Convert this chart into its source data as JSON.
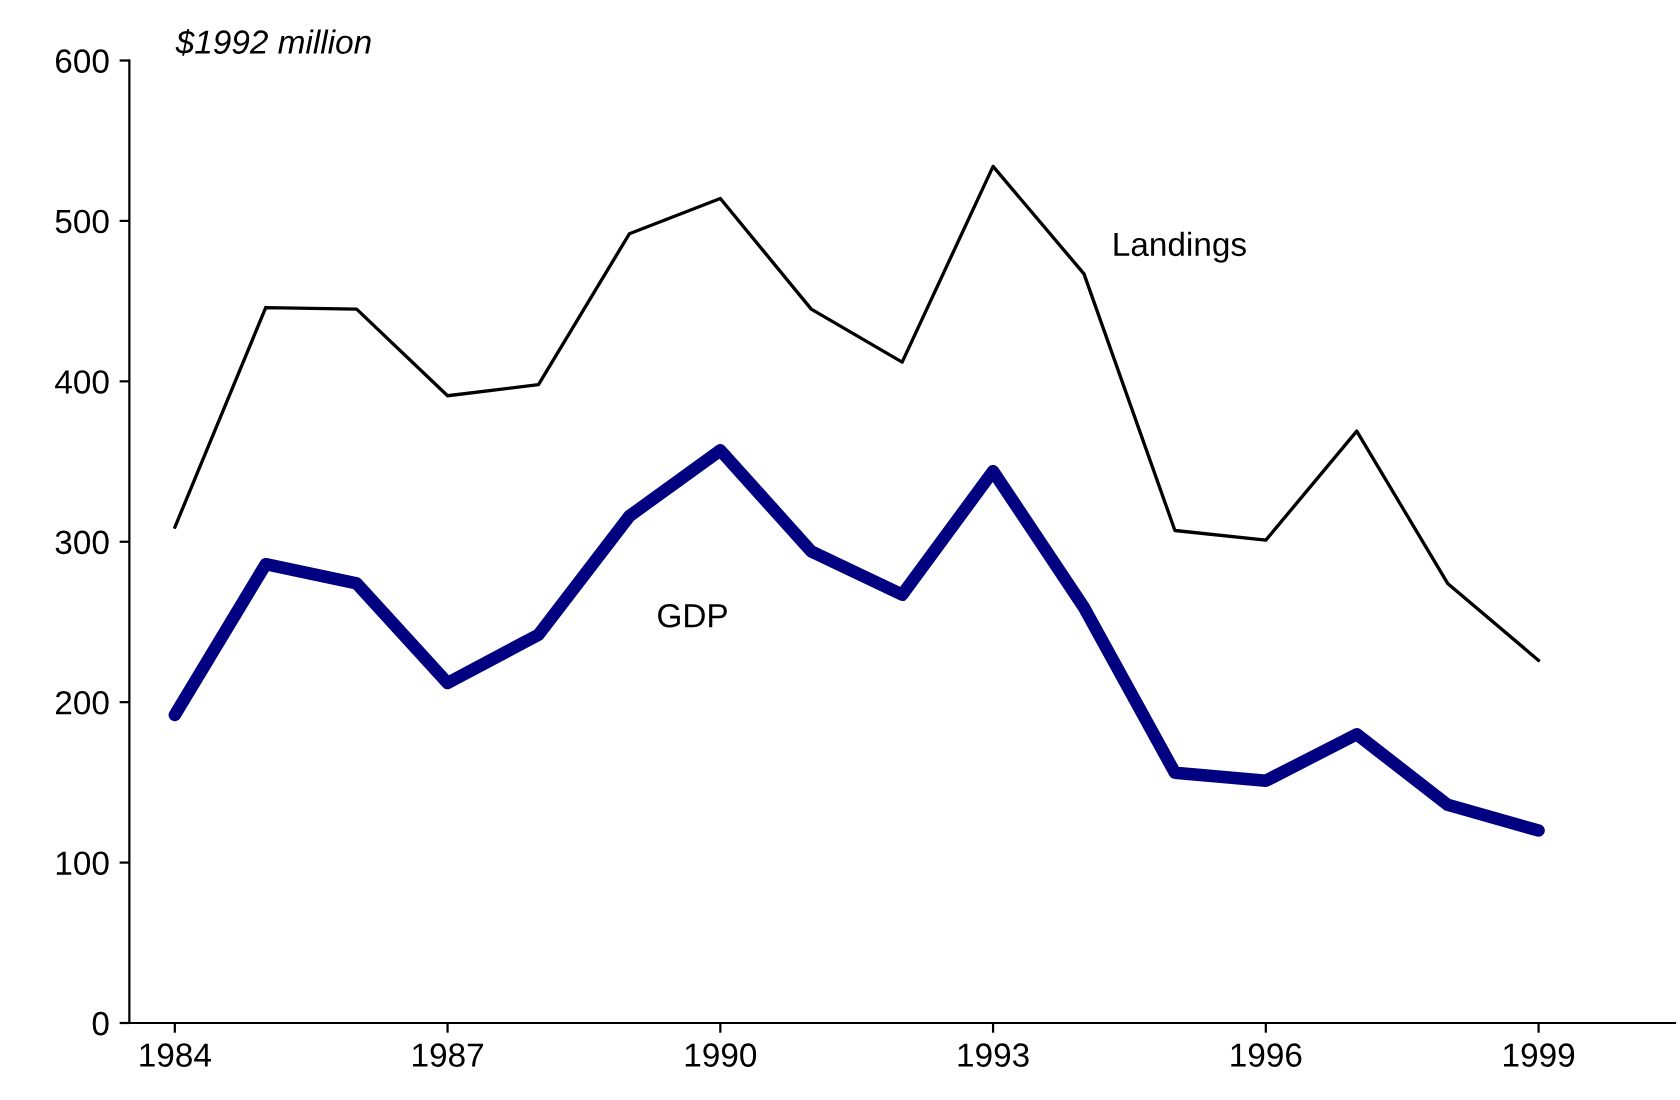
{
  "chart_data": {
    "type": "line",
    "ylabel": "$1992 million",
    "x": [
      1984,
      1985,
      1986,
      1987,
      1988,
      1989,
      1990,
      1991,
      1992,
      1993,
      1994,
      1995,
      1996,
      1997,
      1998,
      1999
    ],
    "series": [
      {
        "name": "Landings",
        "color": "#000000",
        "values": [
          309,
          446,
          445,
          391,
          398,
          492,
          514,
          445,
          412,
          534,
          467,
          307,
          301,
          369,
          274,
          226
        ]
      },
      {
        "name": "GDP",
        "color": "#000080",
        "values": [
          192,
          286,
          274,
          212,
          242,
          316,
          357,
          294,
          267,
          344,
          259,
          156,
          151,
          180,
          136,
          120
        ]
      }
    ],
    "xlim": [
      1983.5,
      2000.5
    ],
    "xticks": [
      1984,
      1987,
      1990,
      1993,
      1996,
      1999
    ],
    "ylim": [
      0,
      600
    ],
    "yticks": [
      0,
      100,
      200,
      300,
      400,
      500,
      600
    ],
    "grid": false,
    "legend": false,
    "marker": "none",
    "line_style": "solid"
  }
}
